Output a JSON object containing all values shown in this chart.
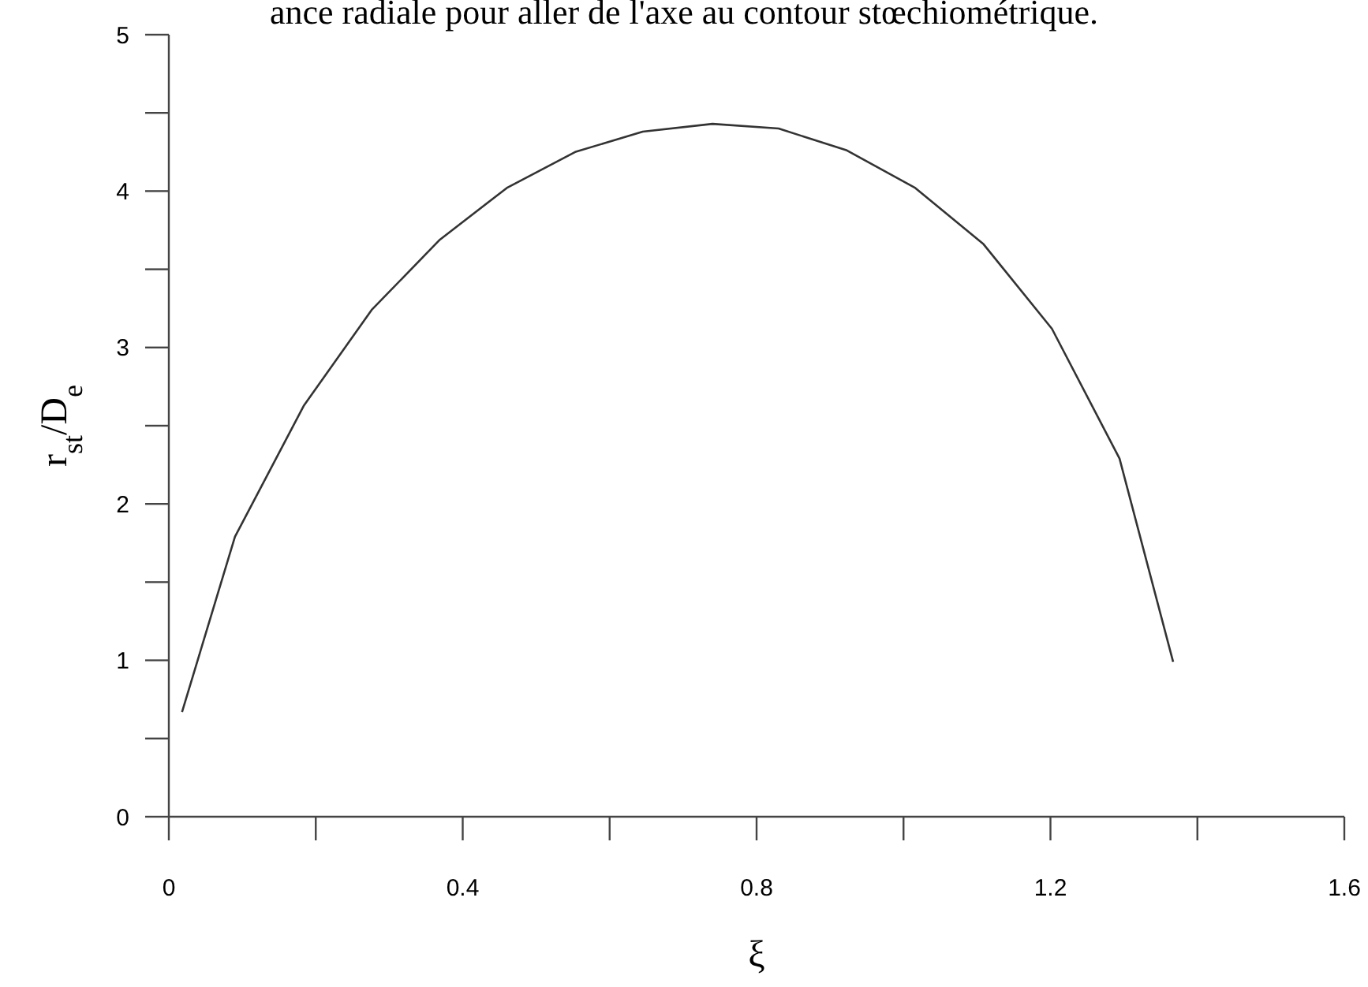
{
  "chart_data": {
    "type": "line",
    "title": "ance radiale pour aller de l'axe au contour stœchiométrique.",
    "xlabel": "ξ",
    "ylabel": "r$_{st}$/D$_{e}$",
    "x": [
      0.018,
      0.09,
      0.184,
      0.276,
      0.369,
      0.46,
      0.553,
      0.645,
      0.74,
      0.83,
      0.923,
      1.016,
      1.109,
      1.202,
      1.294,
      1.367
    ],
    "series": [
      {
        "color": "#333333",
        "values": [
          0.67,
          1.79,
          2.63,
          3.24,
          3.69,
          4.02,
          4.25,
          4.38,
          4.43,
          4.4,
          4.26,
          4.02,
          3.66,
          3.12,
          2.29,
          0.99
        ]
      }
    ],
    "xlim": [
      0,
      1.6
    ],
    "xticks": [
      0,
      {
        "value": 0.2,
        "label": null
      },
      0.4,
      {
        "value": 0.6,
        "label": null
      },
      0.8,
      {
        "value": 1,
        "label": null
      },
      1.2,
      {
        "value": 1.4,
        "label": null
      },
      1.6
    ],
    "ylim": [
      0,
      5
    ],
    "yticks": [
      0,
      {
        "value": 0.5,
        "label": null
      },
      1,
      {
        "value": 1.5,
        "label": null
      },
      2,
      {
        "value": 2.5,
        "label": null
      },
      3,
      {
        "value": 3.5,
        "label": null
      },
      4,
      {
        "value": 4.5,
        "label": null
      },
      5
    ],
    "grid": false,
    "marker": "none",
    "line_style": "solid"
  }
}
